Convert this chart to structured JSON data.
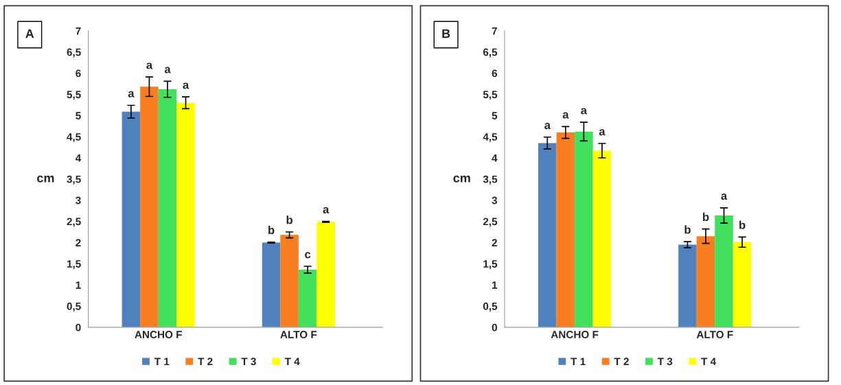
{
  "chart_data": [
    {
      "type": "bar",
      "ylabel": "cm",
      "categories": [
        "ANCHO F",
        "ALTO F"
      ],
      "ylim": [
        0,
        7
      ],
      "yticks": [
        0,
        {
          "value": 0.5,
          "label": "0,5"
        },
        1,
        {
          "value": 1.5,
          "label": "1,5"
        },
        2,
        {
          "value": 2.5,
          "label": "2,5"
        },
        3,
        {
          "value": 3.5,
          "label": "3,5"
        },
        4,
        {
          "value": 4.5,
          "label": "4,5"
        },
        5,
        {
          "value": 5.5,
          "label": "5,5"
        },
        6,
        {
          "value": 6.5,
          "label": "6,5"
        },
        7
      ],
      "grid": false,
      "legend": "bottom",
      "series": [
        {
          "name": "T 1",
          "color": "#4f81bd",
          "values": [
            5.09,
            2.0
          ],
          "errors": [
            0.15,
            0.01
          ]
        },
        {
          "name": "T 2",
          "color": "#f97d21",
          "values": [
            5.68,
            2.18
          ],
          "errors": [
            0.23,
            0.07
          ]
        },
        {
          "name": "T 3",
          "color": "#42e05c",
          "values": [
            5.62,
            1.36
          ],
          "errors": [
            0.19,
            0.08
          ]
        },
        {
          "name": "T 4",
          "color": "#ffff00",
          "values": [
            5.3,
            2.49
          ],
          "errors": [
            0.14,
            0.01
          ]
        }
      ],
      "annotations": [
        "A",
        "a",
        "a",
        "a",
        "a",
        "b",
        "b",
        "c",
        "a"
      ]
    },
    {
      "type": "bar",
      "ylabel": "cm",
      "categories": [
        "ANCHO F",
        "ALTO F"
      ],
      "ylim": [
        0,
        7
      ],
      "yticks": [
        0,
        {
          "value": 0.5,
          "label": "0,5"
        },
        1,
        {
          "value": 1.5,
          "label": "1,5"
        },
        2,
        {
          "value": 2.5,
          "label": "2,5"
        },
        3,
        {
          "value": 3.5,
          "label": "3,5"
        },
        4,
        {
          "value": 4.5,
          "label": "4,5"
        },
        5,
        {
          "value": 5.5,
          "label": "5,5"
        },
        6,
        {
          "value": 6.5,
          "label": "6,5"
        },
        7
      ],
      "grid": false,
      "legend": "bottom",
      "series": [
        {
          "name": "T 1",
          "color": "#4f81bd",
          "values": [
            4.35,
            1.95
          ],
          "errors": [
            0.14,
            0.07
          ]
        },
        {
          "name": "T 2",
          "color": "#f97d21",
          "values": [
            4.6,
            2.15
          ],
          "errors": [
            0.14,
            0.17
          ]
        },
        {
          "name": "T 3",
          "color": "#42e05c",
          "values": [
            4.62,
            2.64
          ],
          "errors": [
            0.22,
            0.18
          ]
        },
        {
          "name": "T 4",
          "color": "#ffff00",
          "values": [
            4.17,
            2.01
          ],
          "errors": [
            0.17,
            0.12
          ]
        }
      ],
      "annotations": [
        "B",
        "a",
        "a",
        "a",
        "a",
        "b",
        "b",
        "a",
        "b"
      ]
    }
  ]
}
